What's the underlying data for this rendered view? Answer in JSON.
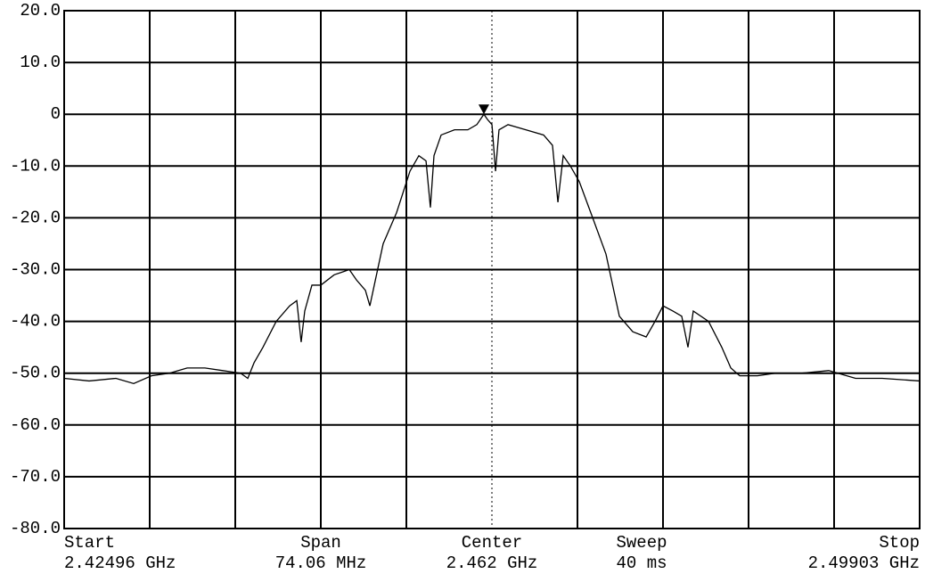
{
  "chart_data": {
    "type": "line",
    "x": [
      2.42496,
      2.42712,
      2.42944,
      2.43098,
      2.43252,
      2.43407,
      2.43561,
      2.43715,
      2.43869,
      2.44024,
      2.44086,
      2.4414,
      2.44217,
      2.44332,
      2.44448,
      2.4451,
      2.44548,
      2.44579,
      2.44641,
      2.44718,
      2.44834,
      2.44965,
      2.45027,
      2.45104,
      2.45143,
      2.45181,
      2.45258,
      2.45374,
      2.4549,
      2.45567,
      2.45629,
      2.45667,
      2.45698,
      2.4576,
      2.45876,
      2.45991,
      2.46069,
      2.4613,
      2.46161,
      2.462,
      2.46231,
      2.46261,
      2.46339,
      2.46493,
      2.46647,
      2.46724,
      2.46771,
      2.46817,
      2.46879,
      2.46956,
      2.47072,
      2.47187,
      2.47264,
      2.47303,
      2.47419,
      2.47535,
      2.47612,
      2.47681,
      2.47766,
      2.47843,
      2.47897,
      2.47943,
      2.48075,
      2.4819,
      2.48268,
      2.48345,
      2.48499,
      2.48653,
      2.48885,
      2.49116,
      2.49348,
      2.49579,
      2.49903
    ],
    "values": [
      -51,
      -51.5,
      -51,
      -52,
      -50.5,
      -50,
      -49,
      -49,
      -49.5,
      -50,
      -51,
      -48,
      -45,
      -40,
      -37,
      -36,
      -44,
      -38,
      -33,
      -33,
      -31,
      -30,
      -32,
      -34,
      -37,
      -33,
      -25,
      -19,
      -11,
      -8,
      -9,
      -18,
      -8,
      -4,
      -3,
      -3,
      -2,
      0,
      -1,
      -2,
      -11,
      -3,
      -2,
      -3,
      -4,
      -6,
      -17,
      -8,
      -10,
      -13,
      -20,
      -27,
      -35,
      -39,
      -42,
      -43,
      -40,
      -37,
      -38,
      -39,
      -45,
      -38,
      -40,
      -45,
      -49,
      -50.5,
      -50.5,
      -50,
      -50,
      -49.5,
      -51,
      -51,
      -51.5
    ],
    "color": "#000000",
    "marker": {
      "x": 2.4613,
      "y": 0
    },
    "xlim": [
      2.42496,
      2.49903
    ],
    "ylim": [
      -80,
      20
    ],
    "yticks": [
      {
        "value": 20,
        "label": "20.0"
      },
      {
        "value": 10,
        "label": "10.0"
      },
      0,
      {
        "value": -10,
        "label": "-10.0"
      },
      {
        "value": -20,
        "label": "-20.0"
      },
      {
        "value": -30,
        "label": "-30.0"
      },
      {
        "value": -40,
        "label": "-40.0"
      },
      {
        "value": -50,
        "label": "-50.0"
      },
      {
        "value": -60,
        "label": "-60.0"
      },
      {
        "value": -70,
        "label": "-70.0"
      },
      {
        "value": -80,
        "label": "-80.0"
      }
    ],
    "grid": true,
    "annotations": [
      {
        "label": "Start",
        "value": "2.42496 GHz"
      },
      {
        "label": "Span",
        "value": "74.06 MHz"
      },
      {
        "label": "Center",
        "value": "2.462 GHz"
      },
      {
        "label": "Sweep",
        "value": "40 ms"
      },
      {
        "label": "Stop",
        "value": "2.49903 GHz"
      }
    ]
  }
}
